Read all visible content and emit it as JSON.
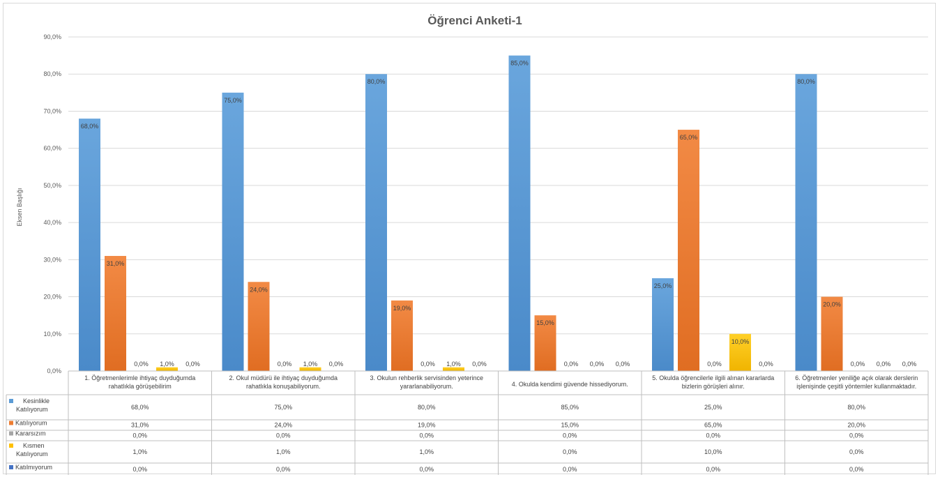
{
  "chart_data": {
    "type": "bar",
    "title": "Öğrenci Anketi-1",
    "ylabel": "Eksen Başlığı",
    "xlabel": "",
    "ylim": [
      0,
      90
    ],
    "yticks": [
      "0,0%",
      "10,0%",
      "20,0%",
      "30,0%",
      "40,0%",
      "50,0%",
      "60,0%",
      "70,0%",
      "80,0%",
      "90,0%"
    ],
    "grid": true,
    "legend": "data-table",
    "categories": [
      [
        "1. Öğretmenlerimle ihtiyaç duyduğumda",
        "rahatlıkla görüşebilirim"
      ],
      [
        "2. Okul müdürü ile ihtiyaç duyduğumda",
        "rahatlıkla konuşabiliyorum."
      ],
      [
        "3. Okulun rehberlik servisinden yeterince",
        "yararlanabiliyorum."
      ],
      [
        "4. Okulda kendimi güvende hissediyorum."
      ],
      [
        "5. Okulda öğrencilerle ilgili alınan kararlarda",
        "bizlerin görüşleri alınır."
      ],
      [
        "6. Öğretmenler yeniliğe açık olarak derslerin",
        "işlenişinde çeşitli yöntemler kullanmaktadır."
      ]
    ],
    "series": [
      {
        "name": [
          "Kesinlikle",
          "Katılıyorum"
        ],
        "color": "#5b9bd5",
        "values": [
          68,
          75,
          80,
          85,
          25,
          80
        ],
        "labels": [
          "68,0%",
          "75,0%",
          "80,0%",
          "85,0%",
          "25,0%",
          "80,0%"
        ]
      },
      {
        "name": [
          "Katılıyorum"
        ],
        "color": "#ed7d31",
        "values": [
          31,
          24,
          19,
          15,
          65,
          20
        ],
        "labels": [
          "31,0%",
          "24,0%",
          "19,0%",
          "15,0%",
          "65,0%",
          "20,0%"
        ]
      },
      {
        "name": [
          "Kararsızım"
        ],
        "color": "#a5a5a5",
        "values": [
          0,
          0,
          0,
          0,
          0,
          0
        ],
        "labels": [
          "0,0%",
          "0,0%",
          "0,0%",
          "0,0%",
          "0,0%",
          "0,0%"
        ]
      },
      {
        "name": [
          "Kısmen",
          "Katılıyorum"
        ],
        "color": "#ffc000",
        "values": [
          1,
          1,
          1,
          0,
          10,
          0
        ],
        "labels": [
          "1,0%",
          "1,0%",
          "1,0%",
          "0,0%",
          "10,0%",
          "0,0%"
        ]
      },
      {
        "name": [
          "Katılmıyorum"
        ],
        "color": "#4472c4",
        "values": [
          0,
          0,
          0,
          0,
          0,
          0
        ],
        "labels": [
          "0,0%",
          "0,0%",
          "0,0%",
          "0,0%",
          "0,0%",
          "0,0%"
        ]
      }
    ]
  }
}
